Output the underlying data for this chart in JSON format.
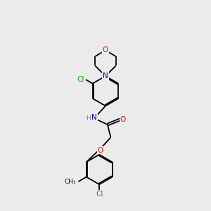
{
  "bg_color": "#ebebeb",
  "bond_color": "#000000",
  "atom_colors": {
    "O": "#ff0000",
    "N": "#0000cd",
    "Cl": "#00aa00",
    "C": "#000000",
    "H": "#4a9090"
  },
  "font_size": 7.5,
  "line_width": 1.3
}
